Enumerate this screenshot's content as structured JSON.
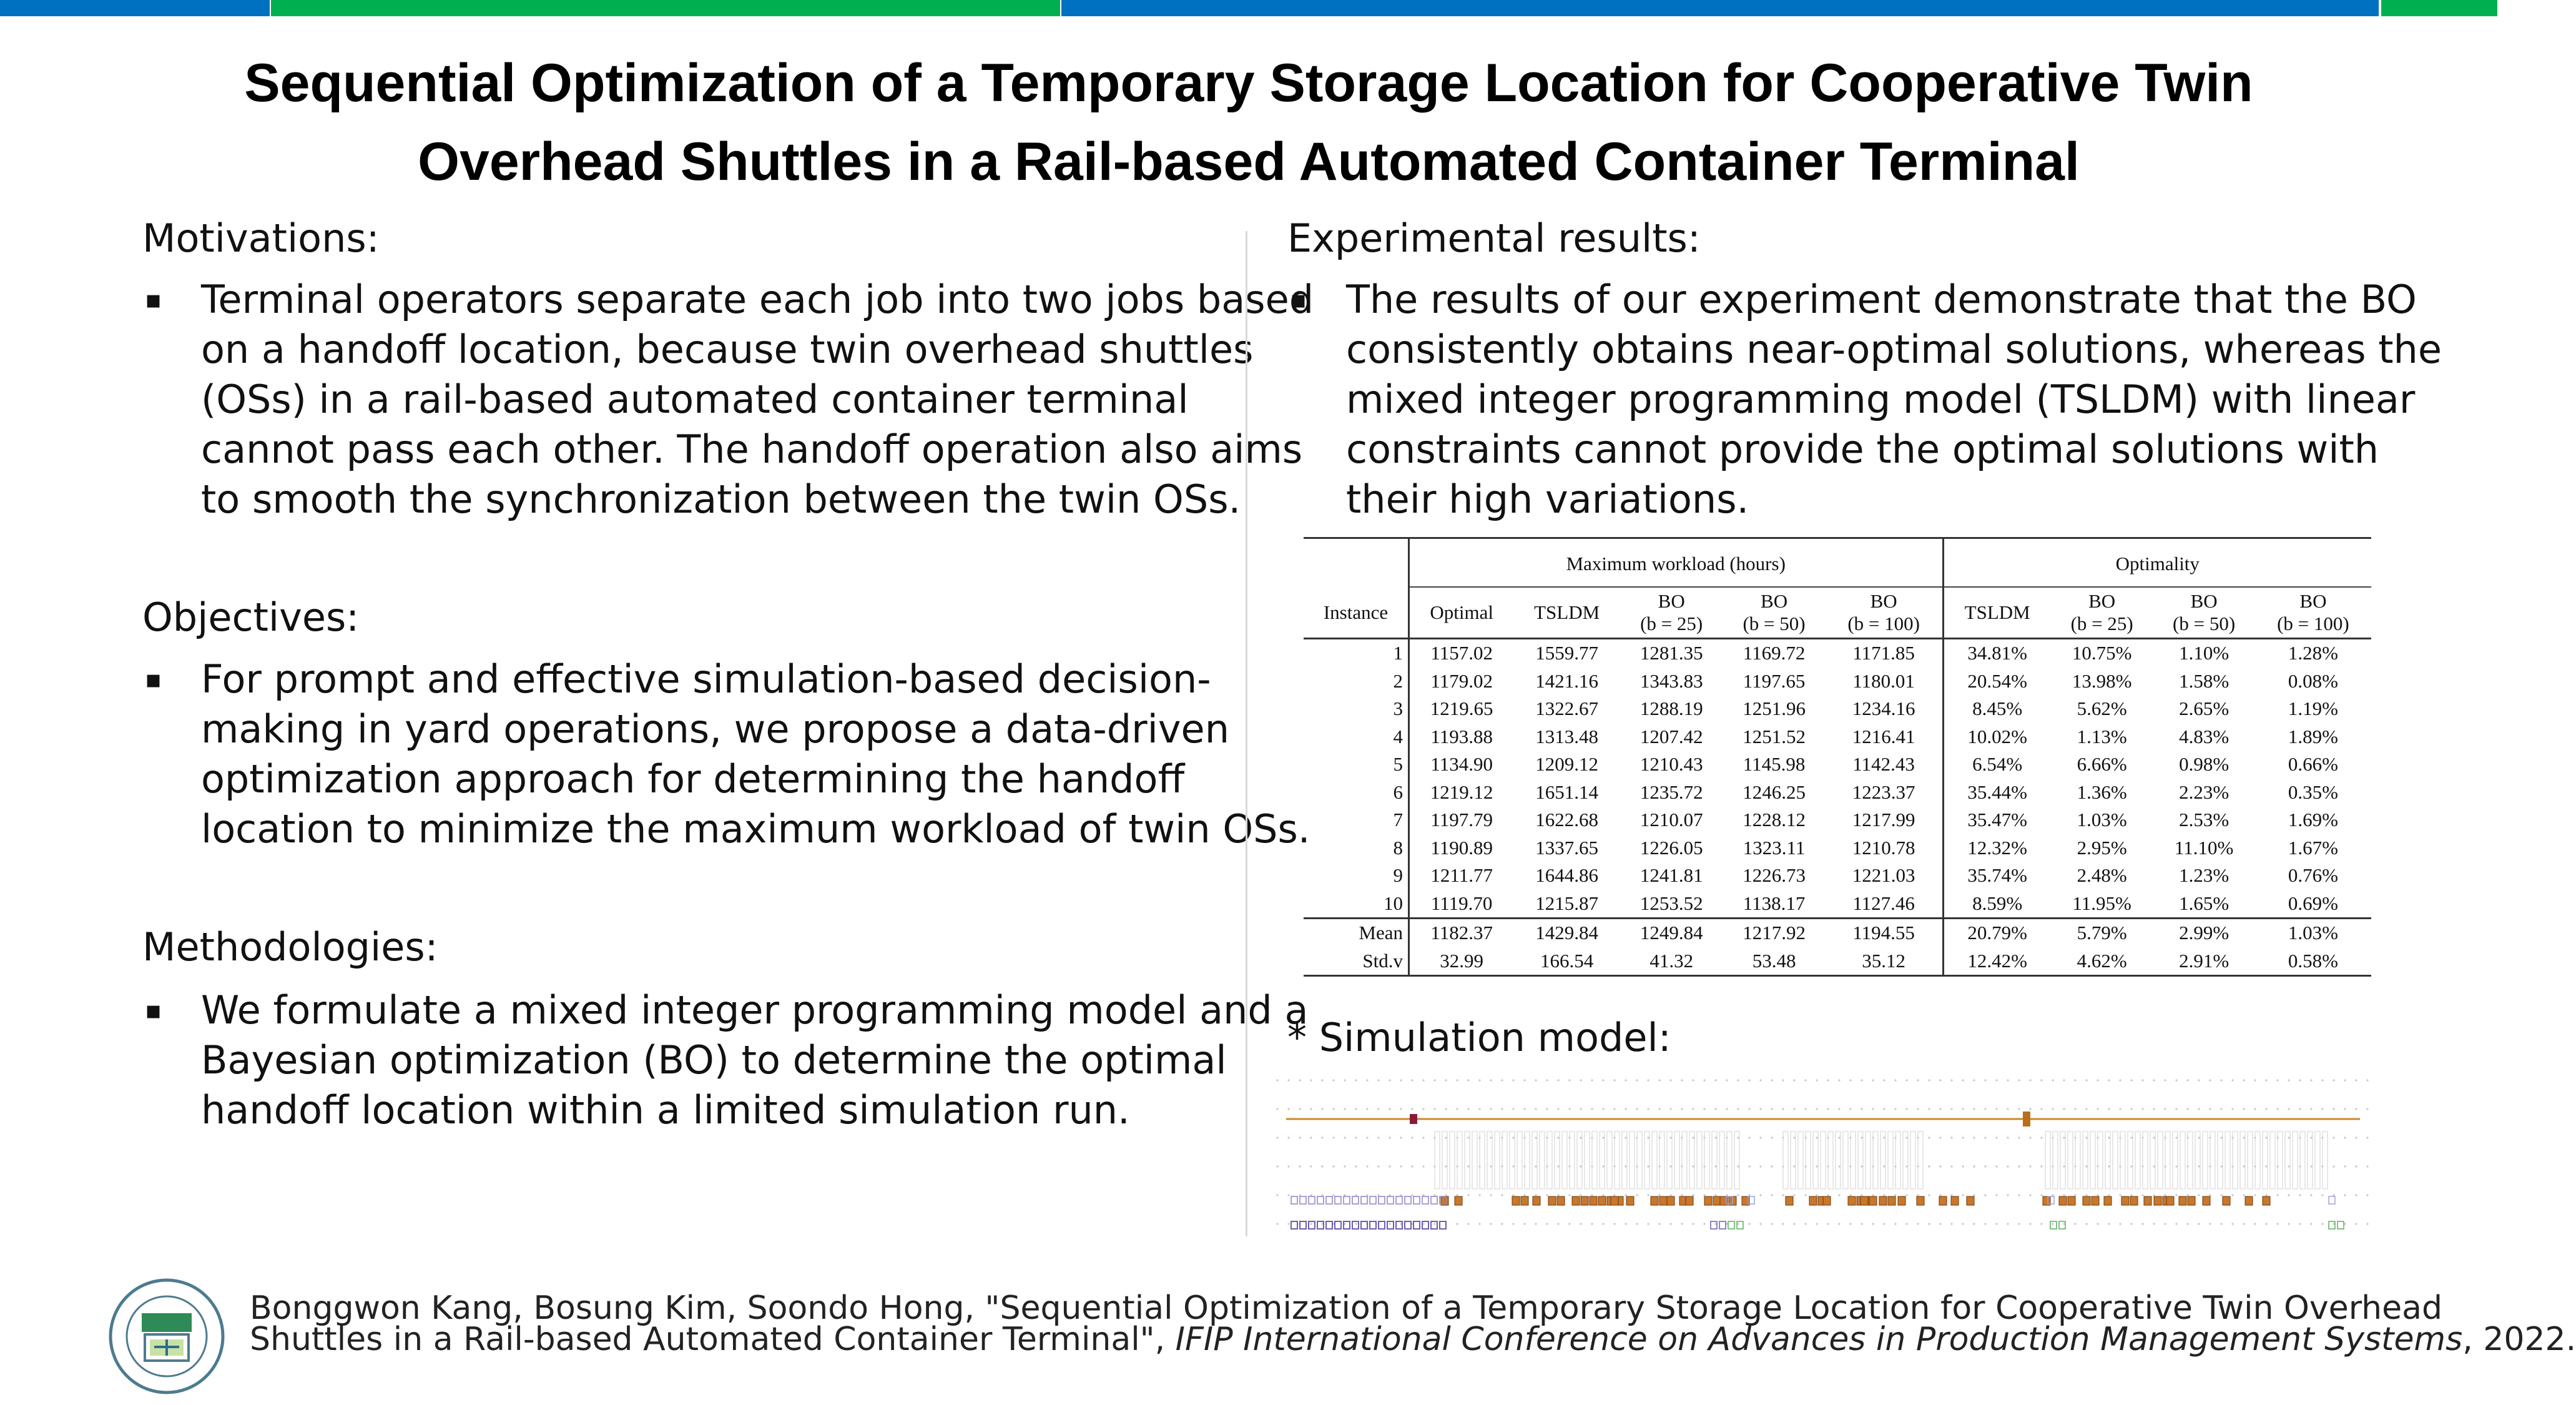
{
  "colors": {
    "bar_blue": "#0070c0",
    "bar_green": "#00b050"
  },
  "title_lines": [
    "Sequential Optimization of a Temporary Storage Location for Cooperative Twin",
    "Overhead Shuttles in a Rail-based Automated Container Terminal"
  ],
  "left": {
    "motivations": {
      "heading": "Motivations:",
      "lines": [
        "Terminal operators separate each job into two jobs based",
        "on a handoff location, because twin overhead shuttles",
        "(OSs) in a rail-based automated container terminal",
        "cannot pass each other. The handoff operation also aims",
        "to smooth the synchronization between the twin OSs."
      ]
    },
    "objectives": {
      "heading": "Objectives:",
      "lines": [
        "For prompt and effective simulation-based decision-",
        "making in yard operations, we propose a data-driven",
        "optimization approach for determining the handoff",
        "location to minimize the maximum workload of twin OSs."
      ]
    },
    "methodologies": {
      "heading": "Methodologies:",
      "lines": [
        "We formulate a mixed integer programming model and a",
        "Bayesian optimization (BO) to determine the optimal",
        "handoff location within a limited simulation run."
      ]
    }
  },
  "right": {
    "experimental": {
      "heading": "Experimental results:",
      "lines": [
        "The results of our experiment demonstrate that the BO",
        "consistently obtains near-optimal solutions, whereas the",
        "mixed integer programming model (TSLDM) with linear",
        "constraints cannot provide the optimal solutions with",
        "their high variations."
      ]
    },
    "simulation_heading": "* Simulation model:"
  },
  "bullet_mark": "▪",
  "table": {
    "group_workload": "Maximum workload (hours)",
    "group_optimality": "Optimality",
    "headers": {
      "instance": "Instance",
      "optimal": "Optimal",
      "tsldm": "TSLDM",
      "bo25a": "BO",
      "bo25b": "(b = 25)",
      "bo50a": "BO",
      "bo50b": "(b = 50)",
      "bo100a": "BO",
      "bo100b": "(b = 100)",
      "tsldm2": "TSLDM",
      "obo25a": "BO",
      "obo25b": "(b = 25)",
      "obo50a": "BO",
      "obo50b": "(b = 50)",
      "obo100a": "BO",
      "obo100b": "(b = 100)"
    },
    "rows": [
      [
        "1",
        "1157.02",
        "1559.77",
        "1281.35",
        "1169.72",
        "1171.85",
        "34.81%",
        "10.75%",
        "1.10%",
        "1.28%"
      ],
      [
        "2",
        "1179.02",
        "1421.16",
        "1343.83",
        "1197.65",
        "1180.01",
        "20.54%",
        "13.98%",
        "1.58%",
        "0.08%"
      ],
      [
        "3",
        "1219.65",
        "1322.67",
        "1288.19",
        "1251.96",
        "1234.16",
        "8.45%",
        "5.62%",
        "2.65%",
        "1.19%"
      ],
      [
        "4",
        "1193.88",
        "1313.48",
        "1207.42",
        "1251.52",
        "1216.41",
        "10.02%",
        "1.13%",
        "4.83%",
        "1.89%"
      ],
      [
        "5",
        "1134.90",
        "1209.12",
        "1210.43",
        "1145.98",
        "1142.43",
        "6.54%",
        "6.66%",
        "0.98%",
        "0.66%"
      ],
      [
        "6",
        "1219.12",
        "1651.14",
        "1235.72",
        "1246.25",
        "1223.37",
        "35.44%",
        "1.36%",
        "2.23%",
        "0.35%"
      ],
      [
        "7",
        "1197.79",
        "1622.68",
        "1210.07",
        "1228.12",
        "1217.99",
        "35.47%",
        "1.03%",
        "2.53%",
        "1.69%"
      ],
      [
        "8",
        "1190.89",
        "1337.65",
        "1226.05",
        "1323.11",
        "1210.78",
        "12.32%",
        "2.95%",
        "11.10%",
        "1.67%"
      ],
      [
        "9",
        "1211.77",
        "1644.86",
        "1241.81",
        "1226.73",
        "1221.03",
        "35.74%",
        "2.48%",
        "1.23%",
        "0.76%"
      ],
      [
        "10",
        "1119.70",
        "1215.87",
        "1253.52",
        "1138.17",
        "1127.46",
        "8.59%",
        "11.95%",
        "1.65%",
        "0.69%"
      ]
    ],
    "summary": [
      [
        "Mean",
        "1182.37",
        "1429.84",
        "1249.84",
        "1217.92",
        "1194.55",
        "20.79%",
        "5.79%",
        "2.99%",
        "1.03%"
      ],
      [
        "Std.v",
        "32.99",
        "166.54",
        "41.32",
        "53.48",
        "35.12",
        "12.42%",
        "4.62%",
        "2.91%",
        "0.58%"
      ]
    ]
  },
  "citation": {
    "line1": "Bonggwon Kang, Bosung Kim, Soondo Hong, \"Sequential Optimization of a Temporary Storage Location for Cooperative Twin Overhead",
    "line2_a": "Shuttles in a Rail-based Automated Container Terminal\", ",
    "line2_venue": "IFIP International Conference on Advances in Production Management Systems",
    "line2_b": ", 2022."
  }
}
